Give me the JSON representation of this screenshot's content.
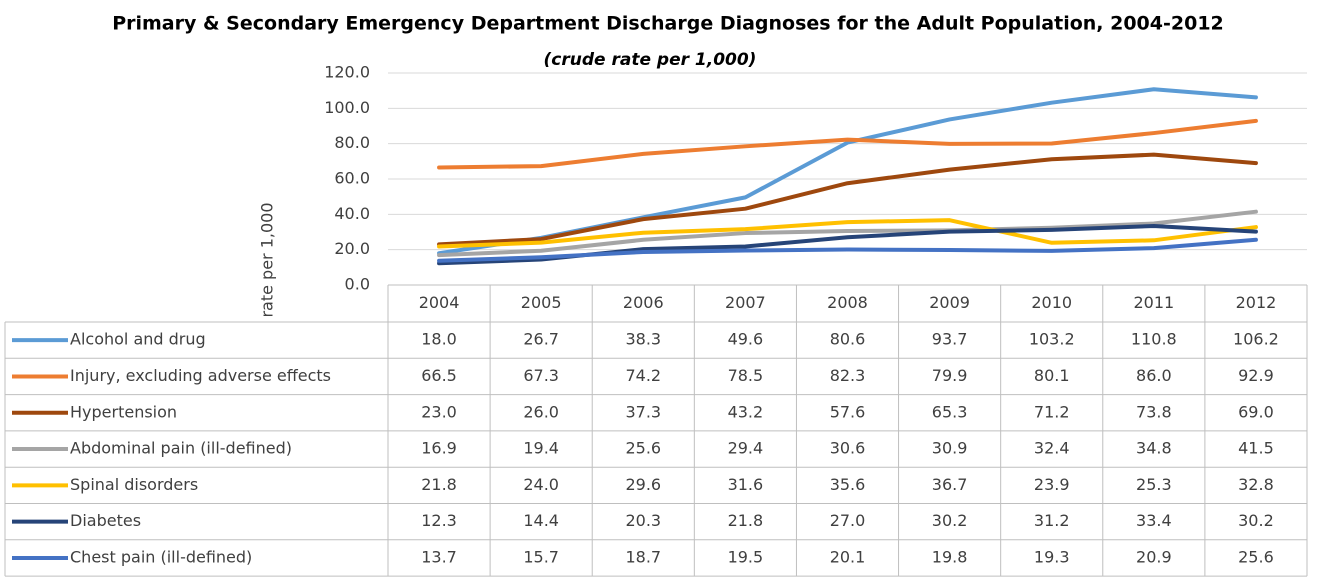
{
  "chart_data": {
    "type": "line",
    "title": "Primary & Secondary Emergency Department Discharge Diagnoses for the Adult Population, 2004-2012",
    "subtitle": "(crude rate per 1,000)",
    "y_label": "rate per 1,000",
    "categories": [
      "2004",
      "2005",
      "2006",
      "2007",
      "2008",
      "2009",
      "2010",
      "2011",
      "2012"
    ],
    "ylim": [
      0,
      120
    ],
    "yticks": [
      {
        "value": 0,
        "label": "0.0"
      },
      {
        "value": 20,
        "label": "20.0"
      },
      {
        "value": 40,
        "label": "40.0"
      },
      {
        "value": 60,
        "label": "60.0"
      },
      {
        "value": 80,
        "label": "80.0"
      },
      {
        "value": 100,
        "label": "100.0"
      },
      {
        "value": 120,
        "label": "120.0"
      }
    ],
    "grid": true,
    "series": [
      {
        "name": "Alcohol and drug",
        "color": "#5B9BD5",
        "values": [
          18,
          26.7,
          38.3,
          49.6,
          80.6,
          93.7,
          103.2,
          110.8,
          106.2
        ],
        "value_labels": [
          "18.0",
          "26.7",
          "38.3",
          "49.6",
          "80.6",
          "93.7",
          "103.2",
          "110.8",
          "106.2"
        ]
      },
      {
        "name": "Injury, excluding adverse effects",
        "color": "#ED7D31",
        "values": [
          66.5,
          67.3,
          74.2,
          78.5,
          82.3,
          79.9,
          80.1,
          86,
          92.9
        ],
        "value_labels": [
          "66.5",
          "67.3",
          "74.2",
          "78.5",
          "82.3",
          "79.9",
          "80.1",
          "86.0",
          "92.9"
        ]
      },
      {
        "name": "Hypertension",
        "color": "#9E480E",
        "values": [
          23,
          26,
          37.3,
          43.2,
          57.6,
          65.3,
          71.2,
          73.8,
          69
        ],
        "value_labels": [
          "23.0",
          "26.0",
          "37.3",
          "43.2",
          "57.6",
          "65.3",
          "71.2",
          "73.8",
          "69.0"
        ]
      },
      {
        "name": "Abdominal pain (ill-defined)",
        "color": "#A5A5A5",
        "values": [
          16.9,
          19.4,
          25.6,
          29.4,
          30.6,
          30.9,
          32.4,
          34.8,
          41.5
        ],
        "value_labels": [
          "16.9",
          "19.4",
          "25.6",
          "29.4",
          "30.6",
          "30.9",
          "32.4",
          "34.8",
          "41.5"
        ]
      },
      {
        "name": "Spinal disorders",
        "color": "#FFC000",
        "values": [
          21.8,
          24,
          29.6,
          31.6,
          35.6,
          36.7,
          23.9,
          25.3,
          32.8
        ],
        "value_labels": [
          "21.8",
          "24.0",
          "29.6",
          "31.6",
          "35.6",
          "36.7",
          "23.9",
          "25.3",
          "32.8"
        ]
      },
      {
        "name": "Diabetes",
        "color": "#264478",
        "values": [
          12.3,
          14.4,
          20.3,
          21.8,
          27,
          30.2,
          31.2,
          33.4,
          30.2
        ],
        "value_labels": [
          "12.3",
          "14.4",
          "20.3",
          "21.8",
          "27.0",
          "30.2",
          "31.2",
          "33.4",
          "30.2"
        ]
      },
      {
        "name": "Chest pain (ill-defined)",
        "color": "#4472C4",
        "values": [
          13.7,
          15.7,
          18.7,
          19.5,
          20.1,
          19.8,
          19.3,
          20.9,
          25.6
        ],
        "value_labels": [
          "13.7",
          "15.7",
          "18.7",
          "19.5",
          "20.1",
          "19.8",
          "19.3",
          "20.9",
          "25.6"
        ]
      }
    ]
  }
}
